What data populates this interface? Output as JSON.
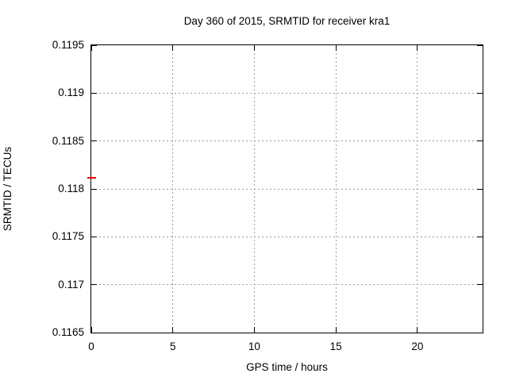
{
  "chart_data": {
    "type": "scatter",
    "title": "Day 360 of 2015, SRMTID for receiver kra1",
    "xlabel": "GPS time / hours",
    "ylabel": "SRMTID / TECUs",
    "xlim": [
      0,
      24
    ],
    "ylim": [
      0.1165,
      0.1195
    ],
    "xticks": [
      {
        "value": 0,
        "label": "0"
      },
      {
        "value": 5,
        "label": "5"
      },
      {
        "value": 10,
        "label": "10"
      },
      {
        "value": 15,
        "label": "15"
      },
      {
        "value": 20,
        "label": "20"
      }
    ],
    "yticks": [
      {
        "value": 0.1165,
        "label": "0.1165"
      },
      {
        "value": 0.117,
        "label": "0.117"
      },
      {
        "value": 0.1175,
        "label": "0.1175"
      },
      {
        "value": 0.118,
        "label": "0.118"
      },
      {
        "value": 0.1185,
        "label": "0.1185"
      },
      {
        "value": 0.119,
        "label": "0.119"
      },
      {
        "value": 0.1195,
        "label": "0.1195"
      }
    ],
    "grid": {
      "show": true,
      "style": "dotted",
      "color": "#9e9e9e"
    },
    "legend_position": "none",
    "series": [
      {
        "name": "SRMTID",
        "color": "#ee0000",
        "marker": "horizontal-dash",
        "points": [
          {
            "x": 0.0,
            "y": 0.11812
          }
        ]
      }
    ],
    "frame_color": "#000000",
    "text_color": "#000000",
    "background_color": "#ffffff"
  }
}
